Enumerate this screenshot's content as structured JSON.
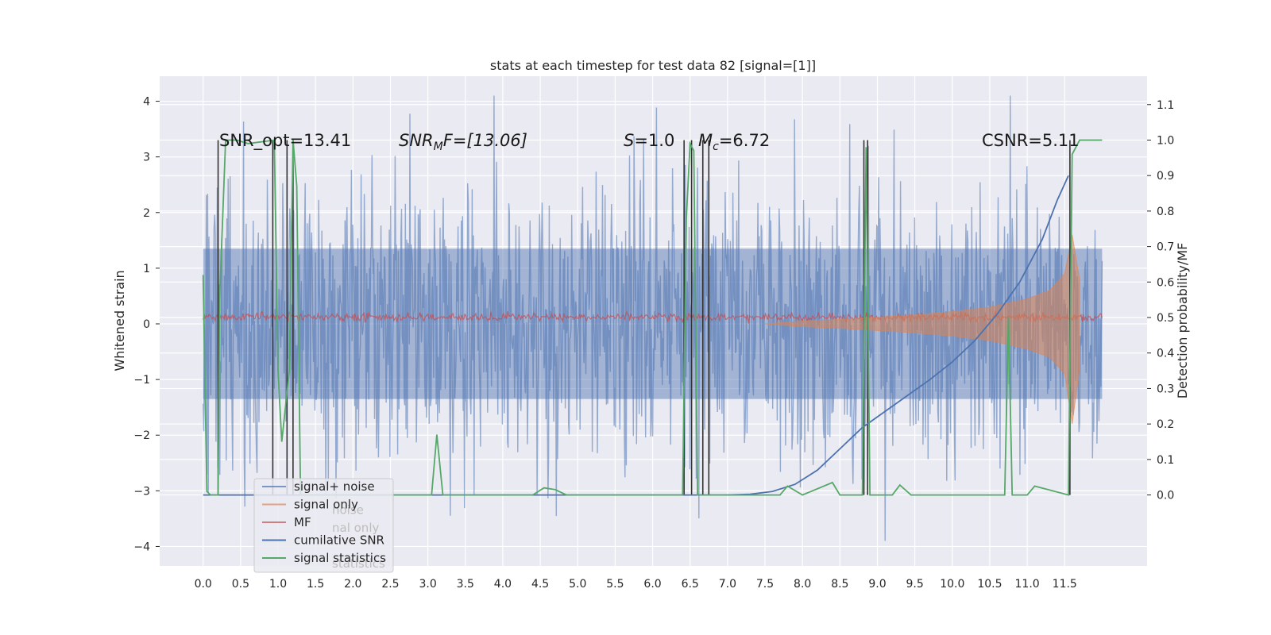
{
  "chart_data": {
    "type": "line",
    "title": "stats at each timestep for test data 82 [signal=[1]]",
    "xlabel": "",
    "ylabel": "Whitened strain",
    "y2label": "Detection probability/MF",
    "xlim": [
      -0.58,
      12.6
    ],
    "ylim": [
      -4.35,
      4.45
    ],
    "y2lim": [
      -0.2,
      1.18
    ],
    "xticks": [
      "0.0",
      "0.5",
      "1.0",
      "1.5",
      "2.0",
      "2.5",
      "3.0",
      "3.5",
      "4.0",
      "4.5",
      "5.0",
      "5.5",
      "6.0",
      "6.5",
      "7.0",
      "7.5",
      "8.0",
      "8.5",
      "9.0",
      "9.5",
      "10.0",
      "10.5",
      "11.0",
      "11.5"
    ],
    "yticks": [
      "4",
      "3",
      "2",
      "1",
      "0",
      "-1",
      "-2",
      "-3",
      "-4"
    ],
    "y2ticks": [
      "0.0",
      "0.1",
      "0.2",
      "0.3",
      "0.4",
      "0.5",
      "0.6",
      "0.7",
      "0.8",
      "0.9",
      "1.0",
      "1.1"
    ],
    "grid": true,
    "legend_position": "lower-left",
    "annotations": {
      "snr_opt": "SNR_opt=13.41",
      "snr_mf_prefix": "SNR",
      "snr_mf_sub": "M",
      "snr_mf_suffix": "F=[13.06]",
      "s_prefix": "S",
      "s_value": "=1.0",
      "mc_prefix": "M",
      "mc_sub": "c",
      "mc_value": "=6.72",
      "csnr": "CSNR=5.11"
    },
    "series": [
      {
        "name": "signal+ noise",
        "color": "#4c72b0",
        "style": "noisy band",
        "amplitude_typical": 1.3,
        "range": [
          -3.9,
          4.1
        ]
      },
      {
        "name": "signal only",
        "color": "#dd8452",
        "style": "chirp envelope",
        "x": [
          7.5,
          8.0,
          8.5,
          9.0,
          9.5,
          10.0,
          10.5,
          11.0,
          11.3,
          11.5,
          11.6,
          11.7
        ],
        "upper": [
          0.0,
          0.05,
          0.08,
          0.12,
          0.16,
          0.22,
          0.3,
          0.45,
          0.6,
          0.9,
          1.6,
          0.8
        ],
        "lower": [
          0.0,
          -0.05,
          -0.08,
          -0.12,
          -0.16,
          -0.22,
          -0.3,
          -0.45,
          -0.6,
          -0.9,
          -1.8,
          -0.8
        ]
      },
      {
        "name": "MF",
        "color": "#c44e52",
        "style": "noise",
        "mean": 0.12,
        "spread": 0.07
      },
      {
        "name": "cumilative SNR",
        "color": "#4c72b0",
        "x": [
          0.0,
          7.0,
          7.3,
          7.6,
          7.9,
          8.2,
          8.5,
          8.8,
          9.1,
          9.4,
          9.7,
          10.0,
          10.3,
          10.6,
          10.9,
          11.2,
          11.4,
          11.55
        ],
        "y": [
          0.0,
          0.0,
          0.002,
          0.01,
          0.03,
          0.07,
          0.13,
          0.19,
          0.235,
          0.28,
          0.325,
          0.375,
          0.435,
          0.51,
          0.6,
          0.72,
          0.83,
          0.9
        ]
      },
      {
        "name": "signal statistics",
        "color": "#55a868",
        "x": [
          0.0,
          0.05,
          0.1,
          0.2,
          0.22,
          0.3,
          0.45,
          0.6,
          0.95,
          1.0,
          1.05,
          1.15,
          1.2,
          1.25,
          1.3,
          1.4,
          3.05,
          3.12,
          3.2,
          4.4,
          4.55,
          4.7,
          4.85,
          6.4,
          6.45,
          6.5,
          6.55,
          6.6,
          6.7,
          6.8,
          7.7,
          7.8,
          8.0,
          8.4,
          8.5,
          8.8,
          8.85,
          8.9,
          9.2,
          9.3,
          9.45,
          10.7,
          10.75,
          10.8,
          11.0,
          11.1,
          11.55,
          11.6,
          11.7,
          12.0
        ],
        "y": [
          0.62,
          0.01,
          0.0,
          0.0,
          0.55,
          1.0,
          1.0,
          0.99,
          1.0,
          0.35,
          0.15,
          0.35,
          1.0,
          0.87,
          0.0,
          0.0,
          0.0,
          0.17,
          0.0,
          0.0,
          0.02,
          0.015,
          0.0,
          0.0,
          0.78,
          0.99,
          0.97,
          0.0,
          0.0,
          0.0,
          0.0,
          0.025,
          0.0,
          0.035,
          0.0,
          0.0,
          0.98,
          0.0,
          0.0,
          0.028,
          0.0,
          0.0,
          0.5,
          0.0,
          0.0,
          0.025,
          0.0,
          0.96,
          1.0,
          1.0
        ]
      },
      {
        "name": "",
        "color": "#333333",
        "style": "vertical lines",
        "x": [
          0.2,
          0.93,
          1.12,
          1.2,
          6.42,
          6.52,
          6.67,
          6.75,
          8.82,
          8.87,
          11.57
        ]
      }
    ],
    "legend": [
      {
        "label": "signal+ noise",
        "color": "#4c72b0",
        "ghost": ""
      },
      {
        "label": "signal only",
        "color": "#dd8452",
        "ghost": "noise"
      },
      {
        "label": "MF",
        "color": "#c44e52",
        "ghost": "nal only"
      },
      {
        "label": "cumilative SNR",
        "color": "#4c72b0",
        "ghost": ""
      },
      {
        "label": "signal statistics",
        "color": "#55a868",
        "ghost": "statistics"
      }
    ]
  }
}
